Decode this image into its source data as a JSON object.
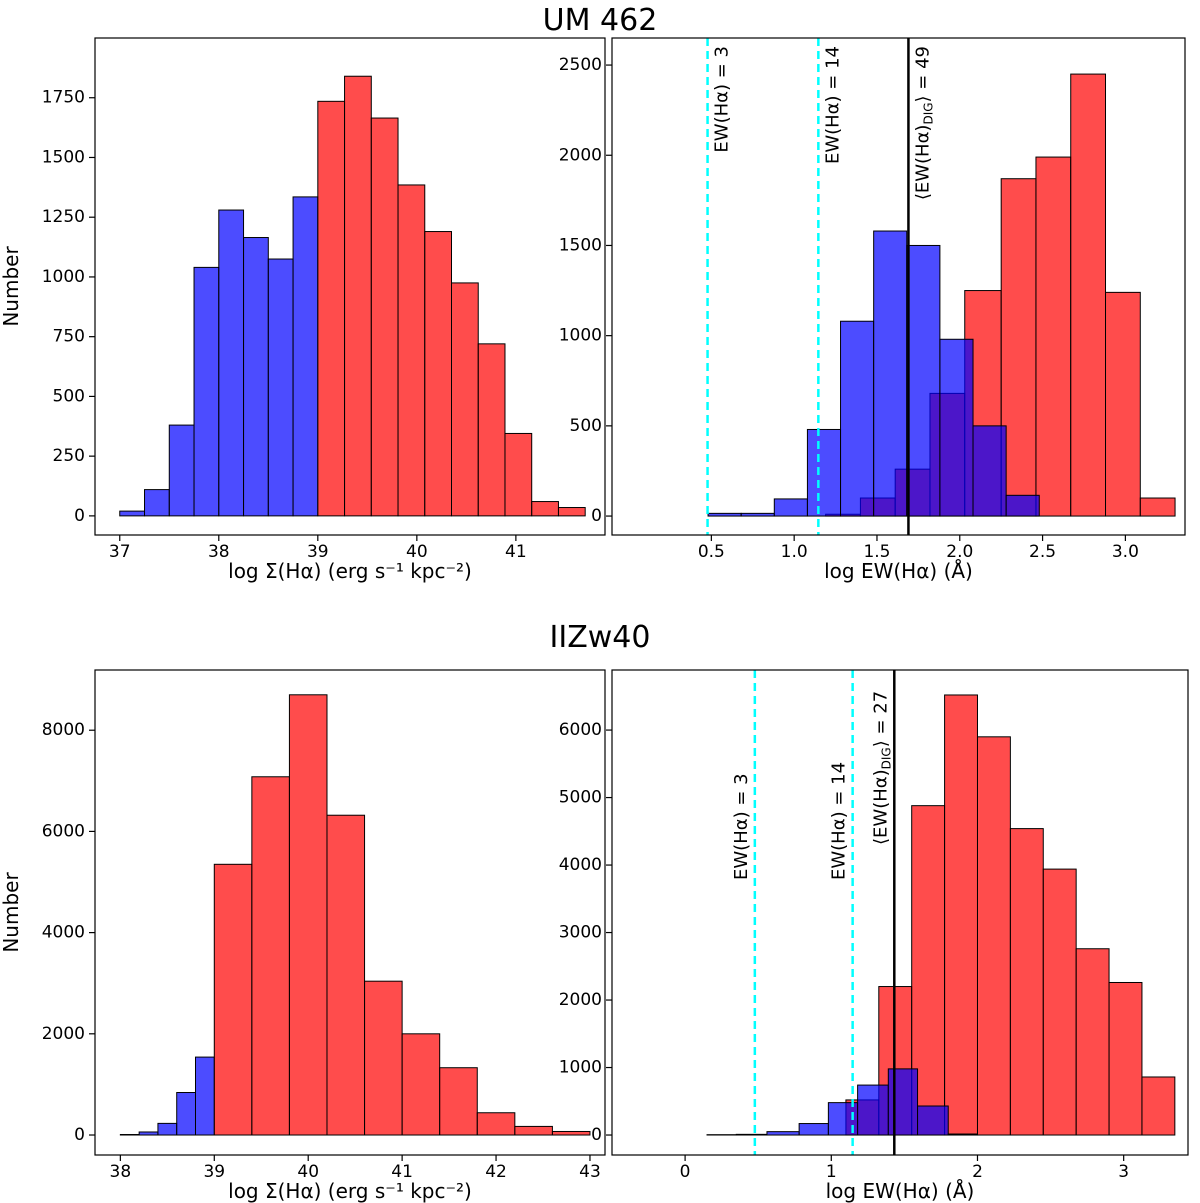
{
  "titles": [
    "UM 462",
    "IIZw40"
  ],
  "chart_data": [
    {
      "type": "histogram",
      "xlabel": "log Σ(Hα) (erg s⁻¹ kpc⁻²)",
      "ylabel": "Number",
      "xlim": [
        36.75,
        41.9
      ],
      "ylim": [
        -80,
        2000
      ],
      "xticks": [
        37,
        38,
        39,
        40,
        41
      ],
      "yticks": [
        0,
        250,
        500,
        750,
        1000,
        1250,
        1500,
        1750
      ],
      "alpha": 0.7,
      "series": [
        {
          "color": "#0000ff",
          "bins": [
            37.0,
            37.25,
            37.5,
            37.75,
            38.0,
            38.25,
            38.5,
            38.75,
            39.0
          ],
          "values": [
            20,
            110,
            380,
            1040,
            1280,
            1165,
            1075,
            1335
          ]
        },
        {
          "color": "#ff0000",
          "bins": [
            39.0,
            39.27,
            39.54,
            39.81,
            40.08,
            40.35,
            40.62,
            40.89,
            41.16,
            41.43,
            41.7
          ],
          "values": [
            1735,
            1840,
            1665,
            1385,
            1190,
            975,
            720,
            345,
            60,
            35
          ]
        }
      ]
    },
    {
      "type": "histogram",
      "xlabel": "log EW(Hα) (Å)",
      "xlim": [
        -0.1,
        3.36
      ],
      "ylim": [
        -105,
        2650
      ],
      "xticks": [
        0.5,
        {
          "value": 1,
          "label": "1.0"
        },
        1.5,
        {
          "value": 2,
          "label": "2.0"
        },
        2.5,
        {
          "value": 3,
          "label": "3.0"
        }
      ],
      "yticks": [
        0,
        500,
        1000,
        1500,
        2000,
        2500
      ],
      "alpha": 0.7,
      "series": [
        {
          "color": "#ff0000",
          "bins": [
            1.19,
            1.4,
            1.61,
            1.82,
            2.03,
            2.25,
            2.46,
            2.67,
            2.88,
            3.09,
            3.3
          ],
          "values": [
            10,
            100,
            260,
            680,
            1250,
            1870,
            1990,
            2450,
            1240,
            100
          ]
        },
        {
          "color": "#0000ff",
          "bins": [
            0.48,
            0.68,
            0.88,
            1.08,
            1.28,
            1.48,
            1.68,
            1.88,
            2.08,
            2.28,
            2.48
          ],
          "values": [
            15,
            15,
            95,
            480,
            1080,
            1580,
            1500,
            980,
            500,
            115
          ]
        }
      ],
      "vlines": [
        {
          "x": 0.477,
          "color": "#00ffff",
          "dashed": true,
          "label": [
            "EW(Hα) = 3"
          ]
        },
        {
          "x": 1.146,
          "color": "#00ffff",
          "dashed": true,
          "label": [
            "EW(Hα) = 14"
          ]
        },
        {
          "x": 1.69,
          "color": "#000000",
          "dashed": false,
          "label": [
            "⟨EW(Hα)",
            "DIG",
            "⟩ = 49"
          ]
        }
      ]
    },
    {
      "type": "histogram",
      "xlabel": "log Σ(Hα) (erg s⁻¹ kpc⁻²)",
      "ylabel": "Number",
      "xlim": [
        37.73,
        43.16
      ],
      "ylim": [
        -395,
        9190
      ],
      "xticks": [
        38,
        39,
        40,
        41,
        42,
        43
      ],
      "yticks": [
        0,
        2000,
        4000,
        6000,
        8000
      ],
      "alpha": 0.7,
      "series": [
        {
          "color": "#0000ff",
          "bins": [
            38.0,
            38.2,
            38.4,
            38.6,
            38.8,
            39.0
          ],
          "values": [
            10,
            60,
            230,
            840,
            1540
          ]
        },
        {
          "color": "#ff0000",
          "bins": [
            39.0,
            39.4,
            39.8,
            40.2,
            40.6,
            41.0,
            41.4,
            41.8,
            42.2,
            42.6,
            43.0
          ],
          "values": [
            5350,
            7080,
            8700,
            6320,
            3040,
            2000,
            1330,
            440,
            170,
            70
          ]
        }
      ]
    },
    {
      "type": "histogram",
      "xlabel": "log EW(Hα) (Å)",
      "xlim": [
        -0.5,
        3.44
      ],
      "ylim": [
        -296,
        6890
      ],
      "xticks": [
        0,
        1,
        2,
        3
      ],
      "yticks": [
        0,
        1000,
        2000,
        3000,
        4000,
        5000,
        6000
      ],
      "alpha": 0.7,
      "series": [
        {
          "color": "#ff0000",
          "bins": [
            1.1,
            1.325,
            1.55,
            1.775,
            2.0,
            2.225,
            2.45,
            2.675,
            2.9,
            3.125,
            3.35
          ],
          "values": [
            520,
            2200,
            4880,
            6520,
            5900,
            4540,
            3940,
            2760,
            2260,
            860
          ]
        },
        {
          "color": "#0000ff",
          "bins": [
            0.15,
            0.35,
            0.56,
            0.78,
            0.98,
            1.18,
            1.39,
            1.59,
            1.8,
            2.0
          ],
          "values": [
            5,
            10,
            50,
            170,
            480,
            740,
            980,
            430,
            15
          ]
        }
      ],
      "vlines": [
        {
          "x": 0.477,
          "color": "#00ffff",
          "dashed": true,
          "label": [
            "EW(Hα) = 3"
          ]
        },
        {
          "x": 1.146,
          "color": "#00ffff",
          "dashed": true,
          "label": [
            "EW(Hα) = 14"
          ]
        },
        {
          "x": 1.431,
          "color": "#000000",
          "dashed": false,
          "label": [
            "⟨EW(Hα)",
            "DIG",
            "⟩ = 27"
          ]
        }
      ]
    }
  ]
}
